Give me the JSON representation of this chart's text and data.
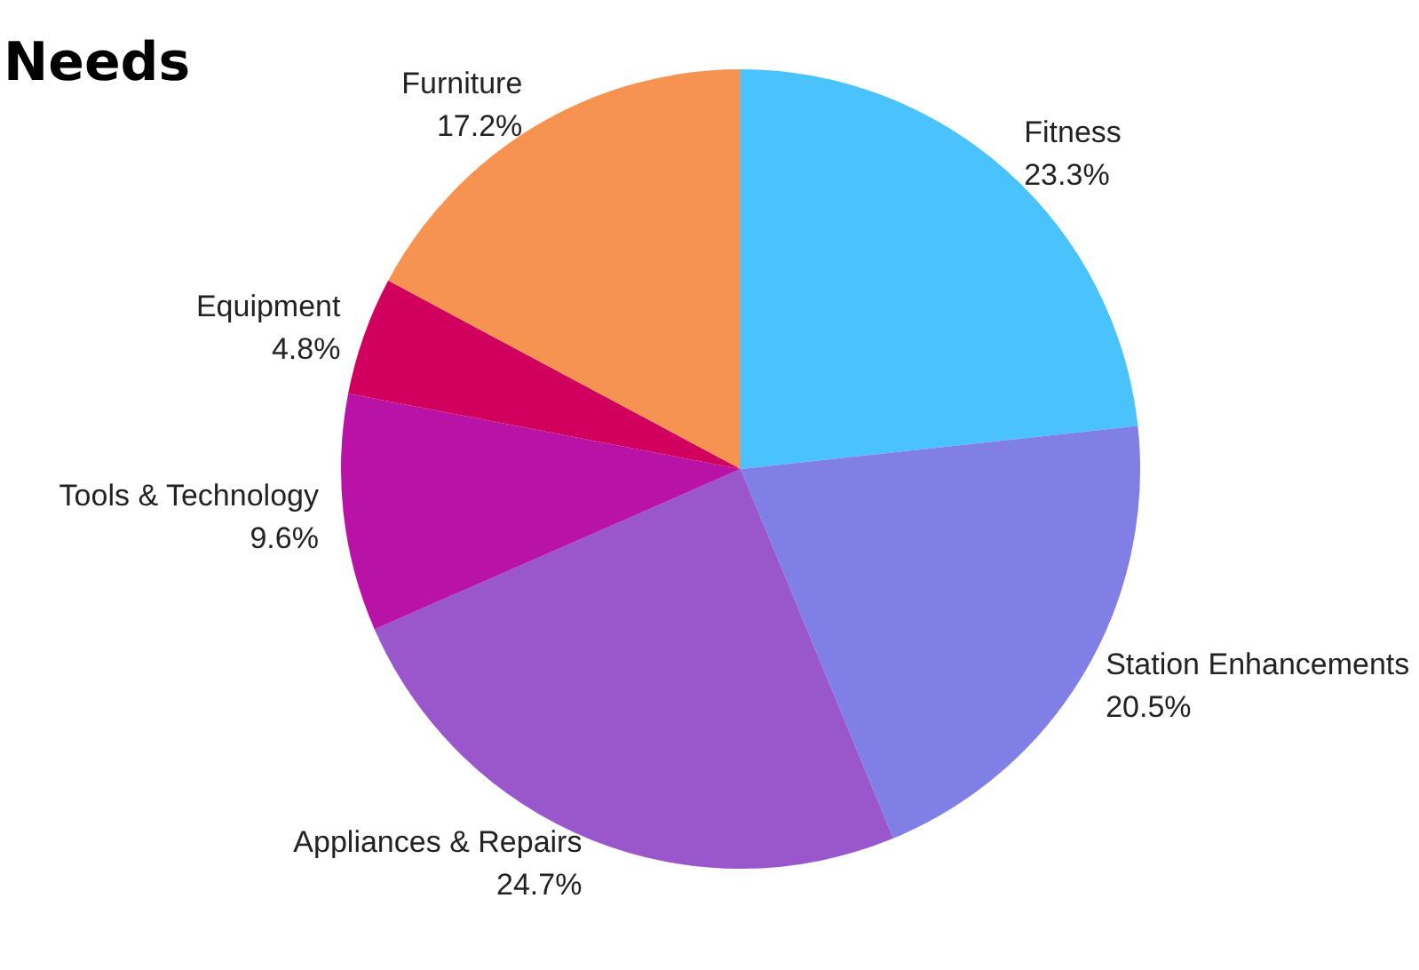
{
  "chart_data": {
    "type": "pie",
    "title": "Needs",
    "categories": [
      "Fitness",
      "Station Enhancements",
      "Appliances & Repairs",
      "Tools & Technology",
      "Equipment",
      "Furniture"
    ],
    "values": [
      23.3,
      20.5,
      24.7,
      9.6,
      4.8,
      17.2
    ],
    "value_labels": [
      "23.3%",
      "20.5%",
      "24.7%",
      "9.6%",
      "4.8%",
      "17.2%"
    ],
    "colors": [
      "#4ac3fd",
      "#7f7fe6",
      "#9a57cc",
      "#b812a6",
      "#d1005e",
      "#f79351"
    ],
    "legend": false
  }
}
